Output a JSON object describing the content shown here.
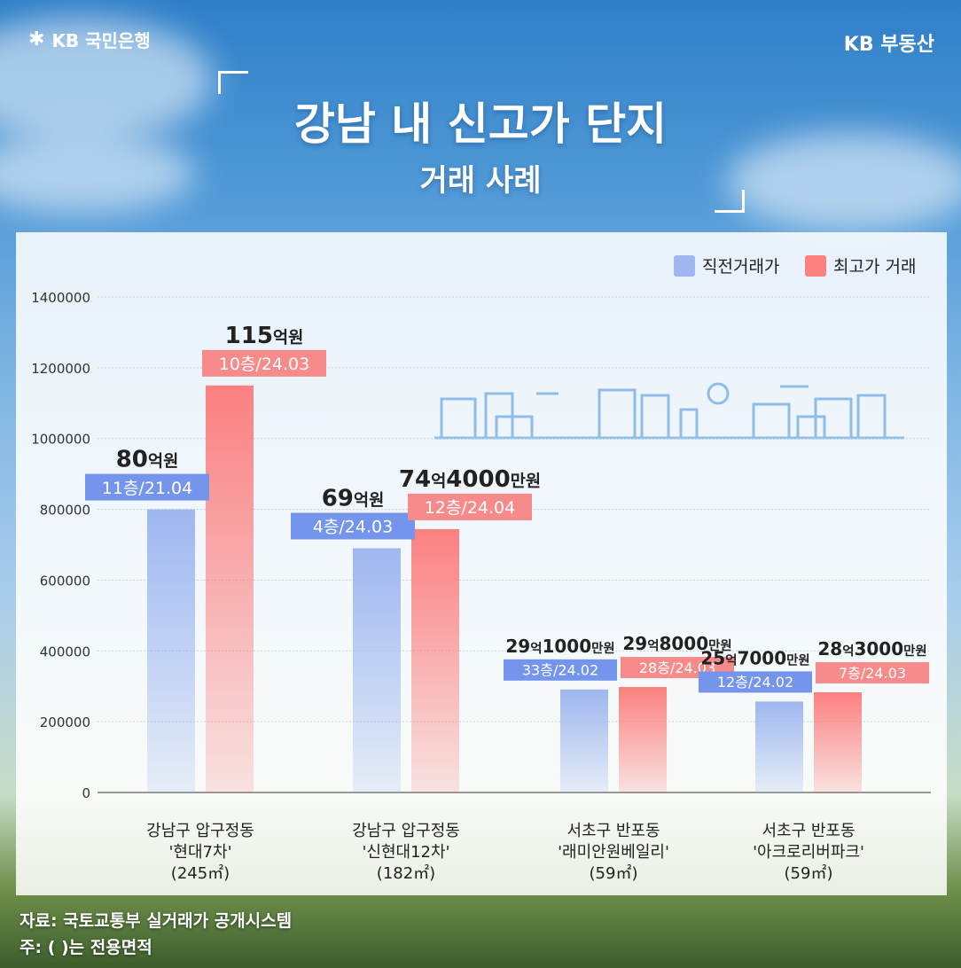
{
  "header": {
    "logo_left": "KB 국민은행",
    "logo_right": "KB 부동산",
    "title": "강남 내 신고가 단지",
    "subtitle": "거래 사례"
  },
  "colors": {
    "prev_bar": "#9fb7f0",
    "max_bar": "#fc8080",
    "prev_tag": "#7595ec",
    "max_tag": "#f78a8a"
  },
  "chart_data": {
    "type": "bar",
    "categories": [
      [
        "강남구 압구정동",
        "'현대7차'",
        "(245㎡)"
      ],
      [
        "강남구 압구정동",
        "'신현대12차'",
        "(182㎡)"
      ],
      [
        "서초구 반포동",
        "'래미안원베일리'",
        "(59㎡)"
      ],
      [
        "서초구 반포동",
        "'아크로리버파크'",
        "(59㎡)"
      ]
    ],
    "series": [
      {
        "name": "직전거래가",
        "values": [
          800000,
          690000,
          291000,
          257000
        ],
        "price_labels": [
          {
            "num": "80",
            "unit": "억원"
          },
          {
            "num": "69",
            "unit": "억원"
          },
          {
            "num": "29",
            "unit": "억",
            "num2": "1000",
            "unit2": "만원"
          },
          {
            "num": "25",
            "unit": "억",
            "num2": "7000",
            "unit2": "만원"
          }
        ],
        "tags": [
          "11층/21.04",
          "4층/24.03",
          "33층/24.02",
          "12층/24.02"
        ]
      },
      {
        "name": "최고가 거래",
        "values": [
          1150000,
          744000,
          298000,
          283000
        ],
        "price_labels": [
          {
            "num": "115",
            "unit": "억원"
          },
          {
            "num": "74",
            "unit": "억",
            "num2": "4000",
            "unit2": "만원"
          },
          {
            "num": "29",
            "unit": "억",
            "num2": "8000",
            "unit2": "만원"
          },
          {
            "num": "28",
            "unit": "억",
            "num2": "3000",
            "unit2": "만원"
          }
        ],
        "tags": [
          "10층/24.03",
          "12층/24.04",
          "28층/24.03",
          "7층/24.03"
        ]
      }
    ],
    "yticks": [
      "0",
      "200000",
      "400000",
      "600000",
      "800000",
      "1000000",
      "1200000",
      "1400000"
    ],
    "ylim": [
      0,
      1400000
    ],
    "grid": true,
    "legend": "top-right"
  },
  "notes": {
    "source": "자료: 국토교통부 실거래가 공개시스템",
    "footnote": "주: ( )는 전용면적"
  }
}
